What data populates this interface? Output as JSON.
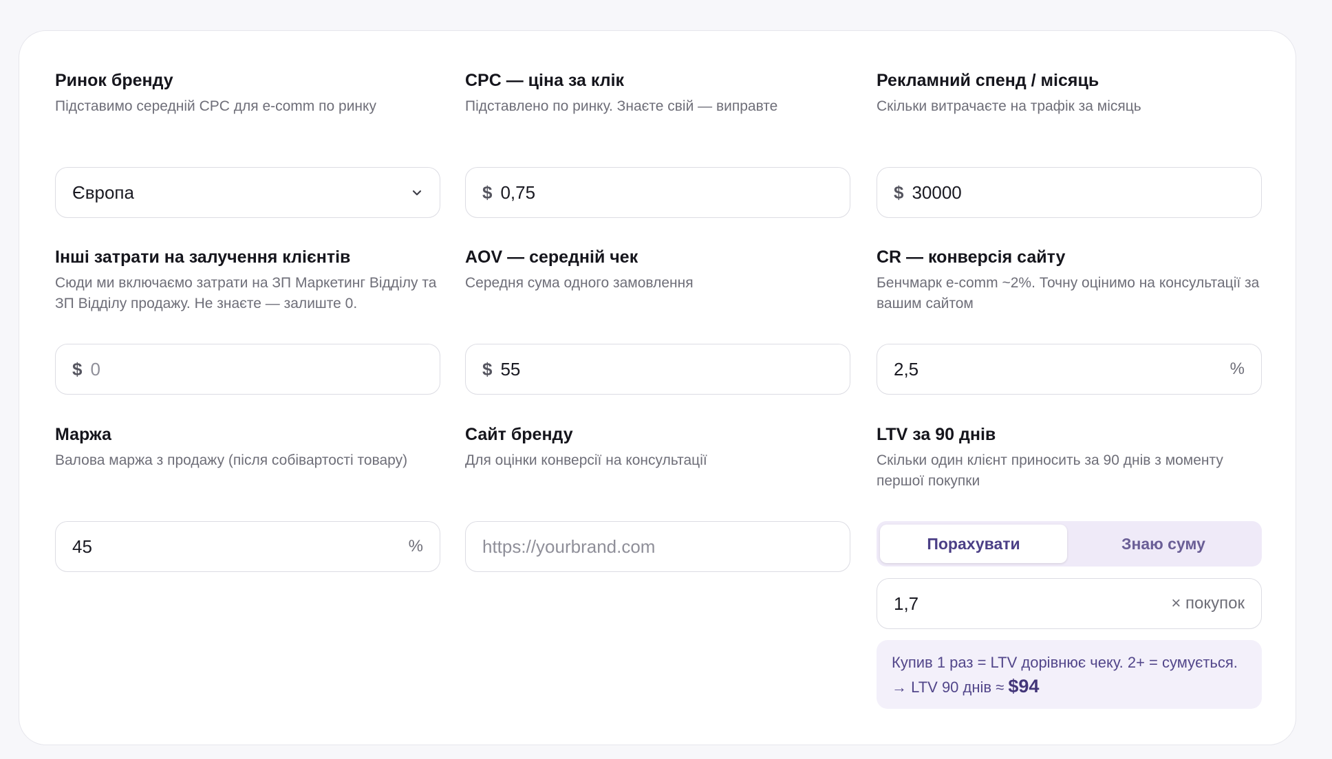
{
  "fields": [
    {
      "label": "Ринок бренду",
      "description": "Підставимо середній CPC для e-comm по ринку",
      "value": "Європа"
    },
    {
      "label": "CPC — ціна за клік",
      "description": "Підставлено по ринку. Знаєте свій — виправте",
      "prefix": "$",
      "value": "0,75"
    },
    {
      "label": "Рекламний спенд / місяць",
      "description": "Скільки витрачаєте на трафік за місяць",
      "prefix": "$",
      "value": "30000"
    },
    {
      "label": "Інші затрати на залучення клієнтів",
      "description": "Сюди ми включаємо затрати на ЗП Маркетинг Відділу та ЗП Відділу продажу. Не знаєте — залиште 0.",
      "prefix": "$",
      "placeholder": "0"
    },
    {
      "label": "AOV — середній чек",
      "description": "Середня сума одного замовлення",
      "prefix": "$",
      "value": "55"
    },
    {
      "label": "CR — конверсія сайту",
      "description": "Бенчмарк e-comm ~2%. Точну оцінимо на консультації за вашим сайтом",
      "value": "2,5",
      "suffix": "%"
    },
    {
      "label": "Маржа",
      "description": "Валова маржа з продажу (після собівартості товару)",
      "value": "45",
      "suffix": "%"
    },
    {
      "label": "Сайт бренду",
      "description": "Для оцінки конверсії на консультації",
      "placeholder": "https://yourbrand.com"
    },
    {
      "label": "LTV за 90 днів",
      "description": "Скільки один клієнт приносить за 90 днів з моменту першої покупки"
    }
  ],
  "ltv": {
    "tabs": [
      "Порахувати",
      "Знаю суму"
    ],
    "value": "1,7",
    "suffix": "× покупок",
    "note": "Купив 1 раз = LTV дорівнює чеку. 2+ = сумується.  →  LTV 90 днів ≈",
    "result": "$94"
  }
}
